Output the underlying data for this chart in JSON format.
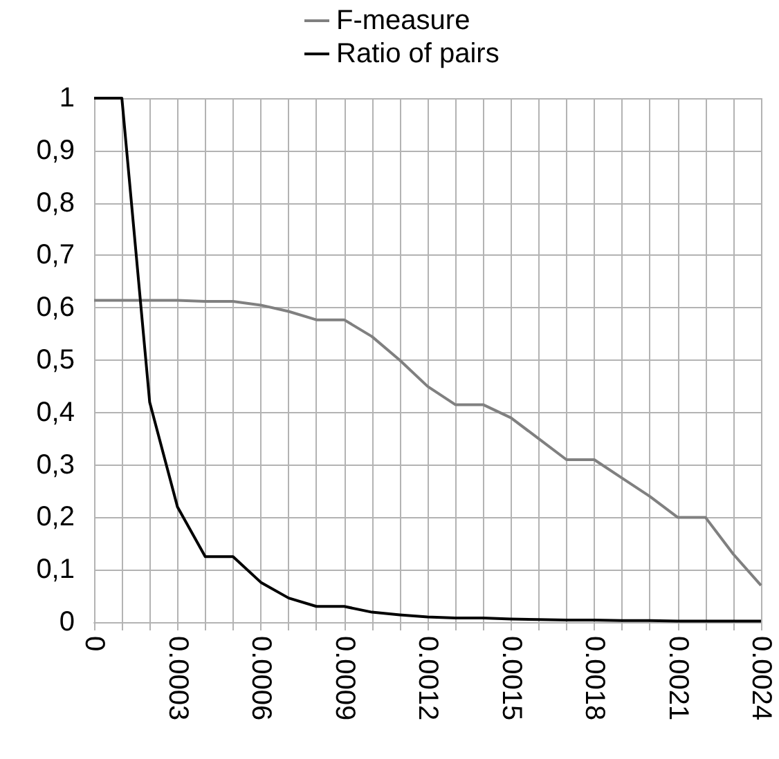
{
  "chart_data": {
    "type": "line",
    "categories": [
      "0",
      null,
      null,
      "0.0003",
      null,
      null,
      "0.0006",
      null,
      null,
      "0.0009",
      null,
      null,
      "0.0012",
      null,
      null,
      "0.0015",
      null,
      null,
      "0.0018",
      null,
      null,
      "0.0021",
      null,
      null,
      "0.0024"
    ],
    "series": [
      {
        "name": "F-measure",
        "color": "#808080",
        "values": [
          0.614,
          0.614,
          0.614,
          0.614,
          0.612,
          0.612,
          0.605,
          0.593,
          0.577,
          0.577,
          0.545,
          0.5,
          0.45,
          0.415,
          0.415,
          0.39,
          0.35,
          0.31,
          0.31,
          0.275,
          0.24,
          0.2,
          0.2,
          0.13,
          0.07
        ]
      },
      {
        "name": "Ratio of pairs",
        "color": "#000000",
        "values": [
          1,
          1,
          0.42,
          0.22,
          0.125,
          0.125,
          0.076,
          0.046,
          0.03,
          0.03,
          0.019,
          0.014,
          0.01,
          0.008,
          0.008,
          0.006,
          0.005,
          0.004,
          0.004,
          0.003,
          0.003,
          0.002,
          0.002,
          0.002,
          0.002
        ]
      }
    ],
    "ylim": [
      0,
      1
    ],
    "yticks": [
      0,
      {
        "value": 0.1,
        "label": "0,1"
      },
      {
        "value": 0.2,
        "label": "0,2"
      },
      {
        "value": 0.3,
        "label": "0,3"
      },
      {
        "value": 0.4,
        "label": "0,4"
      },
      {
        "value": 0.5,
        "label": "0,5"
      },
      {
        "value": 0.6,
        "label": "0,6"
      },
      {
        "value": 0.7,
        "label": "0,7"
      },
      {
        "value": 0.8,
        "label": "0,8"
      },
      {
        "value": 0.9,
        "label": "0,9"
      },
      1
    ],
    "grid": true,
    "legend": "top"
  }
}
